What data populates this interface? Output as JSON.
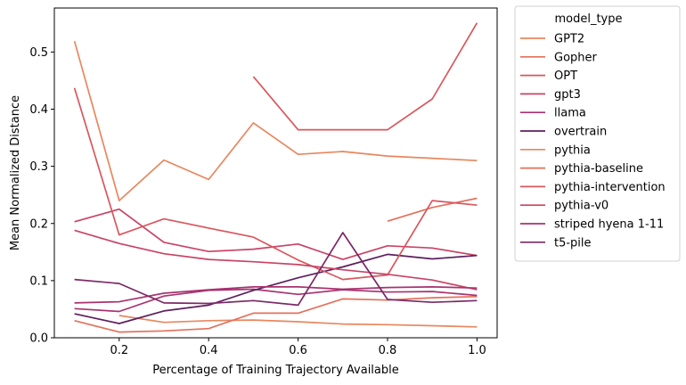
{
  "chart_data": {
    "type": "line",
    "xlabel": "Percentage of Training Trajectory Available",
    "ylabel": "Mean Normalized Distance",
    "xlim": [
      0.055,
      1.045
    ],
    "ylim": [
      0,
      0.577
    ],
    "xticks": [
      0.2,
      0.4,
      0.6,
      0.8,
      1.0
    ],
    "xtick_labels": [
      "0.2",
      "0.4",
      "0.6",
      "0.8",
      "1.0"
    ],
    "yticks": [
      0.0,
      0.1,
      0.2,
      0.3,
      0.4,
      0.5
    ],
    "ytick_labels": [
      "0.0",
      "0.1",
      "0.2",
      "0.3",
      "0.4",
      "0.5"
    ],
    "grid": false,
    "legend": {
      "title": "model_type",
      "placement": "outside-right"
    },
    "series": [
      {
        "name": "GPT2",
        "color": "#e8875e",
        "x": [
          0.2,
          0.3,
          0.4,
          0.5,
          0.6,
          0.7,
          0.8,
          0.9,
          1.0
        ],
        "y": [
          0.039,
          0.027,
          0.03,
          0.031,
          0.028,
          0.024,
          0.023,
          0.021,
          0.019
        ]
      },
      {
        "name": "Gopher",
        "color": "#e3715b",
        "x": [
          0.1,
          0.2,
          0.3,
          0.4,
          0.5,
          0.6,
          0.7,
          0.8,
          0.9,
          1.0
        ],
        "y": [
          0.03,
          0.01,
          0.012,
          0.016,
          0.043,
          0.043,
          0.068,
          0.066,
          0.07,
          0.072
        ]
      },
      {
        "name": "OPT",
        "color": "#d9575e",
        "x": [
          0.5,
          0.6,
          0.7,
          0.8,
          0.9,
          1.0
        ],
        "y": [
          0.457,
          0.364,
          0.364,
          0.364,
          0.418,
          0.551
        ]
      },
      {
        "name": "gpt3",
        "color": "#c94366",
        "x": [
          0.1,
          0.2,
          0.3,
          0.4,
          0.5,
          0.6,
          0.7,
          0.8,
          0.9,
          1.0
        ],
        "y": [
          0.203,
          0.225,
          0.167,
          0.151,
          0.155,
          0.164,
          0.137,
          0.161,
          0.157,
          0.144
        ]
      },
      {
        "name": "llama",
        "color": "#a8336f",
        "x": [
          0.1,
          0.2,
          0.3,
          0.4,
          0.5,
          0.6,
          0.7,
          0.8,
          0.9,
          1.0
        ],
        "y": [
          0.051,
          0.046,
          0.073,
          0.083,
          0.085,
          0.076,
          0.084,
          0.08,
          0.081,
          0.074
        ]
      },
      {
        "name": "overtrain",
        "color": "#5c1f5e",
        "x": [
          0.1,
          0.2,
          0.3,
          0.4,
          0.5,
          0.6,
          0.7,
          0.8,
          0.9,
          1.0
        ],
        "y": [
          0.042,
          0.025,
          0.047,
          0.057,
          0.083,
          0.105,
          0.124,
          0.146,
          0.138,
          0.144
        ]
      },
      {
        "name": "pythia",
        "color": "#e8875e",
        "x": [
          0.1,
          0.2,
          0.3,
          0.4,
          0.5,
          0.6,
          0.7,
          0.8,
          0.9,
          1.0
        ],
        "y": [
          0.519,
          0.24,
          0.311,
          0.277,
          0.376,
          0.321,
          0.326,
          0.318,
          0.314,
          0.31
        ]
      },
      {
        "name": "pythia-baseline",
        "color": "#e3715b",
        "x": [
          0.8,
          0.9,
          1.0
        ],
        "y": [
          0.204,
          0.228,
          0.244
        ]
      },
      {
        "name": "pythia-intervention",
        "color": "#d9575e",
        "x": [
          0.1,
          0.2,
          0.3,
          0.4,
          0.5,
          0.6,
          0.7,
          0.8,
          0.9,
          1.0
        ],
        "y": [
          0.437,
          0.18,
          0.208,
          0.192,
          0.176,
          0.136,
          0.102,
          0.11,
          0.24,
          0.232
        ]
      },
      {
        "name": "pythia-v0",
        "color": "#c94366",
        "x": [
          0.1,
          0.2,
          0.3,
          0.4,
          0.5,
          0.6,
          0.7,
          0.8,
          0.9,
          1.0
        ],
        "y": [
          0.188,
          0.165,
          0.147,
          0.137,
          0.133,
          0.128,
          0.119,
          0.111,
          0.101,
          0.084
        ]
      },
      {
        "name": "striped hyena 1-11",
        "color": "#a8336f",
        "x": [
          0.1,
          0.2,
          0.3,
          0.4,
          0.5,
          0.6,
          0.7,
          0.8,
          0.9,
          1.0
        ],
        "y": [
          0.061,
          0.063,
          0.078,
          0.084,
          0.089,
          0.089,
          0.085,
          0.088,
          0.089,
          0.087
        ]
      },
      {
        "name": "t5-pile",
        "color": "#7b2966",
        "x": [
          0.1,
          0.2,
          0.3,
          0.4,
          0.5,
          0.6,
          0.7,
          0.8,
          0.9,
          1.0
        ],
        "y": [
          0.102,
          0.095,
          0.061,
          0.06,
          0.065,
          0.057,
          0.184,
          0.067,
          0.062,
          0.065
        ]
      }
    ]
  }
}
